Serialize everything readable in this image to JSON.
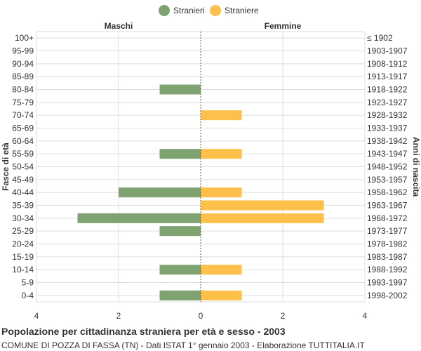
{
  "footer": {
    "title": "Popolazione per cittadinanza straniera per età e sesso - 2003",
    "subtitle": "COMUNE DI POZZA DI FASSA (TN) - Dati ISTAT 1° gennaio 2003 - Elaborazione TUTTITALIA.IT"
  },
  "colors": {
    "males": "#7fa370",
    "females": "#fec04b",
    "grid": "#dddddd",
    "text": "#333333"
  },
  "chart_data": {
    "type": "bar",
    "orientation": "horizontal-pyramid",
    "left_header": "Maschi",
    "right_header": "Femmine",
    "ylabel_left": "Fasce di età",
    "ylabel_right": "Anni di nascita",
    "legend": [
      {
        "name": "Stranieri",
        "color": "#7fa370"
      },
      {
        "name": "Straniere",
        "color": "#fec04b"
      }
    ],
    "legend_position": "top-center",
    "xlim": [
      -4,
      4
    ],
    "xticks": [
      4,
      2,
      0,
      2,
      4
    ],
    "grid": true,
    "age_groups": [
      "100+",
      "95-99",
      "90-94",
      "85-89",
      "80-84",
      "75-79",
      "70-74",
      "65-69",
      "60-64",
      "55-59",
      "50-54",
      "45-49",
      "40-44",
      "35-39",
      "30-34",
      "25-29",
      "20-24",
      "15-19",
      "10-14",
      "5-9",
      "0-4"
    ],
    "birth_years": [
      "≤ 1902",
      "1903-1907",
      "1908-1912",
      "1913-1917",
      "1918-1922",
      "1923-1927",
      "1928-1932",
      "1933-1937",
      "1938-1942",
      "1943-1947",
      "1948-1952",
      "1953-1957",
      "1958-1962",
      "1963-1967",
      "1968-1972",
      "1973-1977",
      "1978-1982",
      "1983-1987",
      "1988-1992",
      "1993-1997",
      "1998-2002"
    ],
    "series": [
      {
        "name": "Stranieri",
        "values": [
          0,
          0,
          0,
          0,
          1,
          0,
          0,
          0,
          0,
          1,
          0,
          0,
          2,
          0,
          3,
          1,
          0,
          0,
          1,
          0,
          1
        ]
      },
      {
        "name": "Straniere",
        "values": [
          0,
          0,
          0,
          0,
          0,
          0,
          1,
          0,
          0,
          1,
          0,
          0,
          1,
          3,
          3,
          0,
          0,
          0,
          1,
          0,
          1
        ]
      }
    ]
  }
}
